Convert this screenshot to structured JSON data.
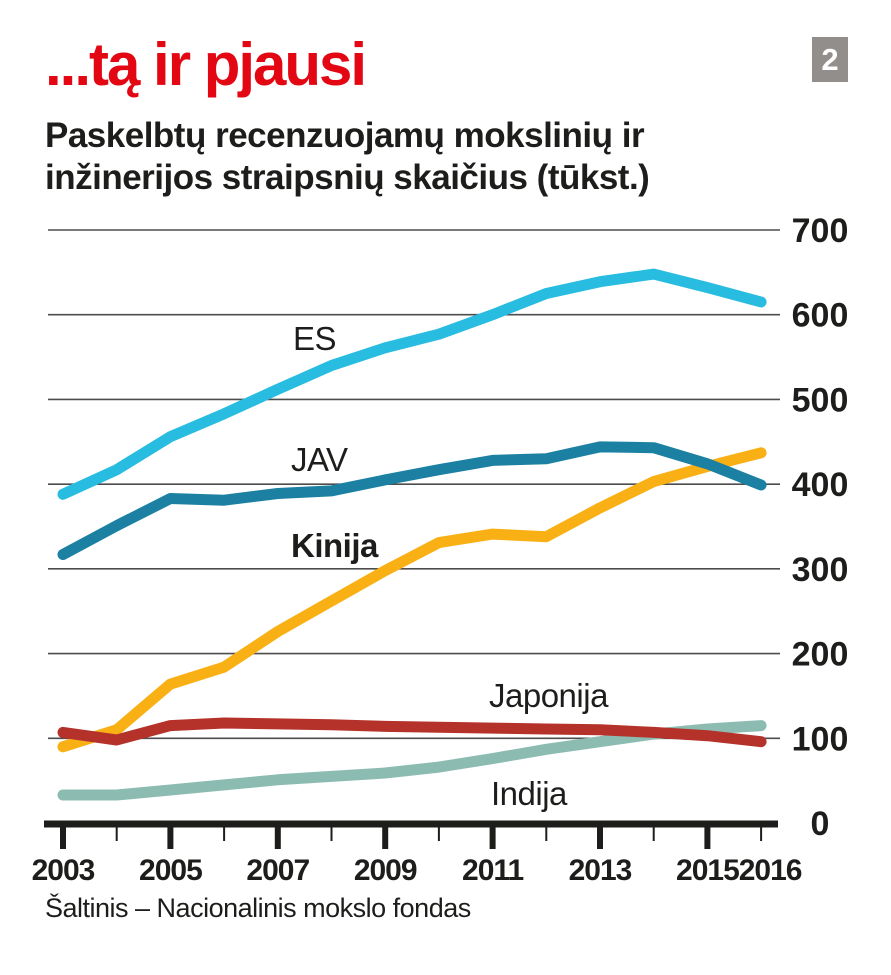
{
  "header": {
    "title": "...tą ir pjausi",
    "subtitle_line1": "Paskelbtų recenzuojamų mokslinių ir",
    "subtitle_line2": "inžinerijos straipsnių skaičius (tūkst.)",
    "badge": "2"
  },
  "footer": {
    "source": "Šaltinis – Nacionalinis mokslo fondas"
  },
  "colors": {
    "title_red": "#e30613",
    "badge_gray": "#928e8c",
    "ink": "#1d1d1b",
    "gridline": "#4d4d4d"
  },
  "chart_data": {
    "type": "line",
    "title": "...tą ir pjausi",
    "subtitle": "Paskelbtų recenzuojamų mokslinių ir inžinerijos straipsnių skaičius (tūkst.)",
    "unit": "tūkst.",
    "x": [
      2003,
      2004,
      2005,
      2006,
      2007,
      2008,
      2009,
      2010,
      2011,
      2012,
      2013,
      2014,
      2015,
      2016
    ],
    "x_axis_labeled_years": [
      "2003",
      "2005",
      "2007",
      "2009",
      "2011",
      "2013",
      "2015",
      "2016"
    ],
    "y_ticks": [
      "0",
      "100",
      "200",
      "300",
      "400",
      "500",
      "600",
      "700"
    ],
    "ylim": [
      0,
      700
    ],
    "grid": "horizontal",
    "legend_position": "inline-labels-near-lines",
    "series": [
      {
        "name": "ES",
        "color": "#28bde0",
        "values": [
          388,
          417,
          456,
          483,
          512,
          540,
          561,
          577,
          600,
          625,
          639,
          648,
          632,
          615
        ]
      },
      {
        "name": "JAV",
        "color": "#1b80a1",
        "values": [
          317,
          351,
          383,
          381,
          389,
          392,
          405,
          417,
          428,
          430,
          444,
          443,
          424,
          399
        ]
      },
      {
        "name": "Kinija",
        "color": "#f9b015",
        "values": [
          90,
          110,
          164,
          184,
          226,
          262,
          298,
          331,
          341,
          338,
          372,
          403,
          421,
          437
        ]
      },
      {
        "name": "Japonija",
        "color": "#b43229",
        "values": [
          107,
          98,
          115,
          118,
          117,
          116,
          114,
          113,
          112,
          111,
          110,
          107,
          103,
          96
        ]
      },
      {
        "name": "Indija",
        "color": "#8cbcb1",
        "values": [
          33,
          33,
          39,
          45,
          51,
          55,
          59,
          66,
          76,
          87,
          96,
          105,
          111,
          115
        ]
      }
    ]
  }
}
